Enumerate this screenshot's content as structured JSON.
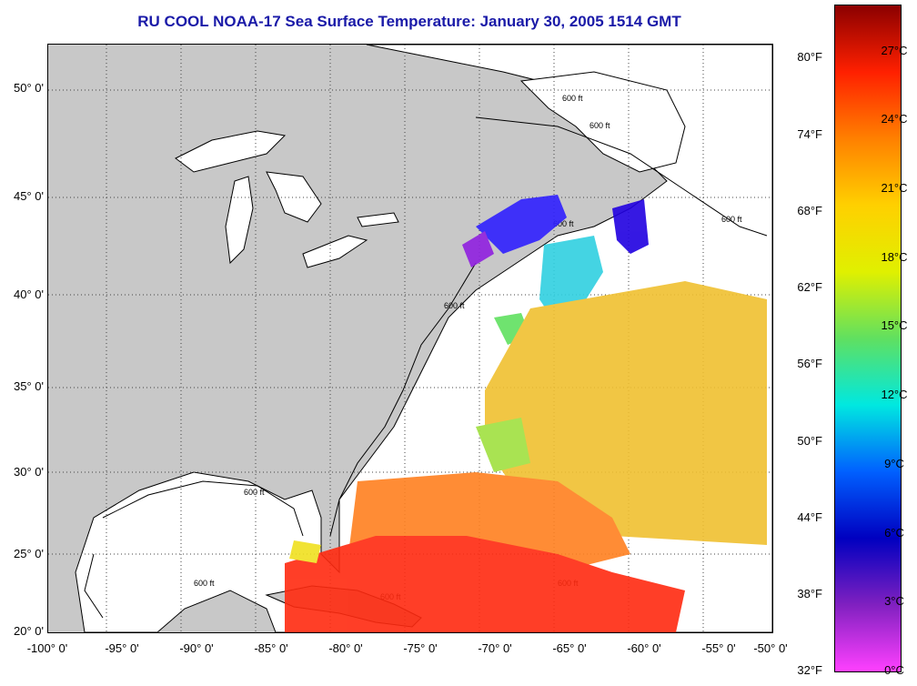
{
  "title": "RU COOL  NOAA-17  Sea Surface Temperature:  January 30, 2005 1514 GMT",
  "map": {
    "lat_labels": [
      "50° 0'",
      "45° 0'",
      "40° 0'",
      "35° 0'",
      "30° 0'",
      "25° 0'",
      "20° 0'"
    ],
    "lon_labels": [
      "-100° 0'",
      "-95° 0'",
      "-90° 0'",
      "-85° 0'",
      "-80° 0'",
      "-75° 0'",
      "-70° 0'",
      "-65° 0'",
      "-60° 0'",
      "-55° 0'",
      "-50° 0'"
    ],
    "bathymetry_label": "600 ft",
    "land_color": "#c8c8c8",
    "water_color": "#ffffff"
  },
  "colorbar": {
    "fahrenheit_ticks": [
      "80°F",
      "74°F",
      "68°F",
      "62°F",
      "56°F",
      "50°F",
      "44°F",
      "38°F",
      "32°F"
    ],
    "celsius_ticks": [
      "27°C",
      "24°C",
      "21°C",
      "18°C",
      "15°C",
      "12°C",
      "9°C",
      "6°C",
      "3°C",
      "0°C"
    ],
    "gradient": [
      "#8b0000",
      "#ff2000",
      "#ff8000",
      "#ffd000",
      "#e0f000",
      "#60e060",
      "#00e8e0",
      "#0060ff",
      "#0000c0",
      "#8020c0",
      "#ff40ff"
    ]
  }
}
